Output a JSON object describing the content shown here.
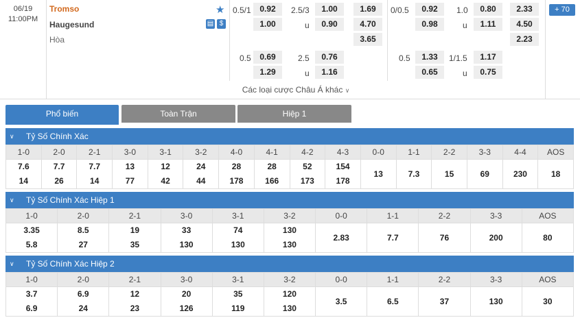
{
  "match": {
    "date": "06/19",
    "time": "11:00PM",
    "home": "Tromso",
    "away": "Haugesund",
    "draw": "Hòa",
    "more_count": "70"
  },
  "odds": {
    "ft_handicap_line1": "0.5/1",
    "ft_handicap_home1": "0.92",
    "ft_handicap_away1": "1.00",
    "ft_ou_line1": "2.5/3",
    "ft_ou_over1": "1.00",
    "ft_ou_u": "u",
    "ft_ou_under1": "0.90",
    "ft_1x2_home": "1.69",
    "ft_1x2_away": "4.70",
    "ft_1x2_draw": "3.65",
    "ft_handicap_line2": "0.5",
    "ft_handicap_home2": "0.69",
    "ft_handicap_away2": "1.29",
    "ft_ou_line2": "2.5",
    "ft_ou_over2": "0.76",
    "ft_ou_under2": "1.16",
    "h1_handicap_line1": "0/0.5",
    "h1_handicap_home1": "0.92",
    "h1_handicap_away1": "0.98",
    "h1_ou_line1": "1.0",
    "h1_ou_over1": "0.80",
    "h1_ou_under1": "1.11",
    "h1_1x2_home": "2.33",
    "h1_1x2_away": "4.50",
    "h1_1x2_draw": "2.23",
    "h1_handicap_line2": "0.5",
    "h1_handicap_home2": "1.33",
    "h1_handicap_away2": "0.65",
    "h1_ou_line2": "1/1.5",
    "h1_ou_over2": "1.17",
    "h1_ou_under2": "0.75"
  },
  "other_markets": "Các loại cược Châu Á khác",
  "tabs": [
    "Phổ biến",
    "Toàn Trận",
    "Hiệp 1"
  ],
  "sections": [
    {
      "title": "Tỷ Số Chính Xác",
      "headers": [
        "1-0",
        "2-0",
        "2-1",
        "3-0",
        "3-1",
        "3-2",
        "4-0",
        "4-1",
        "4-2",
        "4-3",
        "0-0",
        "1-1",
        "2-2",
        "3-3",
        "4-4",
        "AOS"
      ],
      "top": [
        "7.6",
        "7.7",
        "7.7",
        "13",
        "12",
        "24",
        "28",
        "28",
        "52",
        "154",
        "13",
        "7.3",
        "15",
        "69",
        "230",
        "18"
      ],
      "bottom": [
        "14",
        "26",
        "14",
        "77",
        "42",
        "44",
        "178",
        "166",
        "173",
        "178",
        "",
        "",
        "",
        "",
        "",
        ""
      ]
    },
    {
      "title": "Tỷ Số Chính Xác Hiệp 1",
      "headers": [
        "1-0",
        "2-0",
        "2-1",
        "3-0",
        "3-1",
        "3-2",
        "0-0",
        "1-1",
        "2-2",
        "3-3",
        "AOS"
      ],
      "top": [
        "3.35",
        "8.5",
        "19",
        "33",
        "74",
        "130",
        "2.83",
        "7.7",
        "76",
        "200",
        "80"
      ],
      "bottom": [
        "5.8",
        "27",
        "35",
        "130",
        "130",
        "130",
        "",
        "",
        "",
        "",
        ""
      ]
    },
    {
      "title": "Tỷ Số Chính Xác Hiệp 2",
      "headers": [
        "1-0",
        "2-0",
        "2-1",
        "3-0",
        "3-1",
        "3-2",
        "0-0",
        "1-1",
        "2-2",
        "3-3",
        "AOS"
      ],
      "top": [
        "3.7",
        "6.9",
        "12",
        "20",
        "35",
        "120",
        "3.5",
        "6.5",
        "37",
        "130",
        "30"
      ],
      "bottom": [
        "6.9",
        "24",
        "23",
        "126",
        "119",
        "130",
        "",
        "",
        "",
        "",
        ""
      ]
    }
  ],
  "colors": {
    "accent": "#3d7fc4",
    "home_team": "#d2691e",
    "tab_inactive": "#888888"
  }
}
